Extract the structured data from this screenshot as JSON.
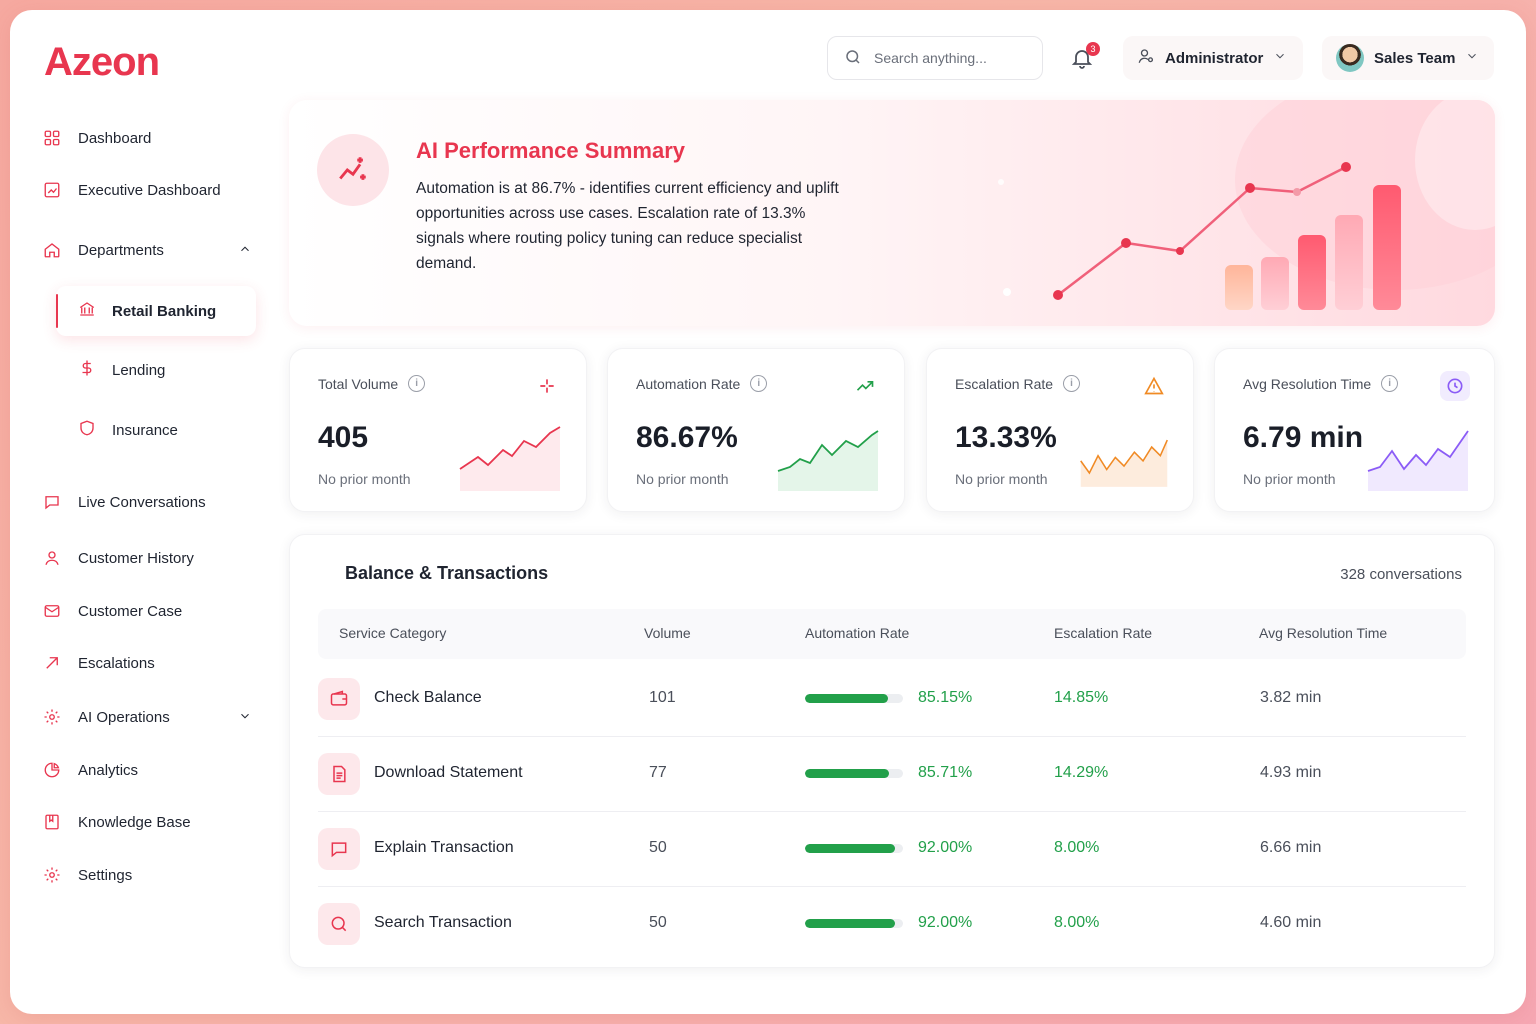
{
  "app": {
    "logo": "Azeon"
  },
  "sidebar": {
    "items": [
      {
        "label": "Dashboard",
        "icon": "grid-icon"
      },
      {
        "label": "Executive Dashboard",
        "icon": "chart-icon"
      },
      {
        "label": "Departments",
        "icon": "home-icon"
      },
      {
        "label": "Live Conversations",
        "icon": "chat-icon"
      },
      {
        "label": "Customer History",
        "icon": "user-icon"
      },
      {
        "label": "Customer Case",
        "icon": "mail-icon"
      },
      {
        "label": "Escalations",
        "icon": "arrow-up-right-icon"
      },
      {
        "label": "AI Operations",
        "icon": "gear-icon"
      },
      {
        "label": "Analytics",
        "icon": "pie-icon"
      },
      {
        "label": "Knowledge Base",
        "icon": "book-icon"
      },
      {
        "label": "Settings",
        "icon": "gear-icon"
      }
    ],
    "sub_items": [
      {
        "label": "Retail Banking",
        "icon": "bank-icon"
      },
      {
        "label": "Lending",
        "icon": "dollar-icon"
      },
      {
        "label": "Insurance",
        "icon": "shield-icon"
      }
    ]
  },
  "header": {
    "search_placeholder": "Search anything...",
    "notification_count": "3",
    "role": "Administrator",
    "team": "Sales Team"
  },
  "summary": {
    "title": "AI Performance Summary",
    "text": "Automation is at 86.7% - identifies current efficiency and uplift opportunities across use cases. Escalation rate of 13.3% signals where routing policy tuning can reduce specialist demand."
  },
  "kpis": [
    {
      "title": "Total Volume",
      "value": "405",
      "sub": "No prior month",
      "color": "#e8364f",
      "icon": "sparkle-icon"
    },
    {
      "title": "Automation Rate",
      "value": "86.67%",
      "sub": "No prior month",
      "color": "#22a04a",
      "icon": "trend-up-icon"
    },
    {
      "title": "Escalation Rate",
      "value": "13.33%",
      "sub": "No prior month",
      "color": "#f08a24",
      "icon": "warning-icon"
    },
    {
      "title": "Avg Resolution Time",
      "value": "6.79 min",
      "sub": "No prior month",
      "color": "#8b5cf6",
      "icon": "clock-icon"
    }
  ],
  "table": {
    "title": "Balance & Transactions",
    "count": "328 conversations",
    "headers": [
      "Service Category",
      "Volume",
      "Automation Rate",
      "Escalation Rate",
      "Avg Resolution Time"
    ],
    "rows": [
      {
        "name": "Check Balance",
        "volume": "101",
        "automation": "85.15%",
        "automation_value": 85.15,
        "escalation": "14.85%",
        "resolution": "3.82 min",
        "icon": "wallet-icon"
      },
      {
        "name": "Download Statement",
        "volume": "77",
        "automation": "85.71%",
        "automation_value": 85.71,
        "escalation": "14.29%",
        "resolution": "4.93 min",
        "icon": "document-icon"
      },
      {
        "name": "Explain Transaction",
        "volume": "50",
        "automation": "92.00%",
        "automation_value": 92.0,
        "escalation": "8.00%",
        "resolution": "6.66 min",
        "icon": "chat-icon"
      },
      {
        "name": "Search Transaction",
        "volume": "50",
        "automation": "92.00%",
        "automation_value": 92.0,
        "escalation": "8.00%",
        "resolution": "4.60 min",
        "icon": "search-icon"
      }
    ]
  }
}
